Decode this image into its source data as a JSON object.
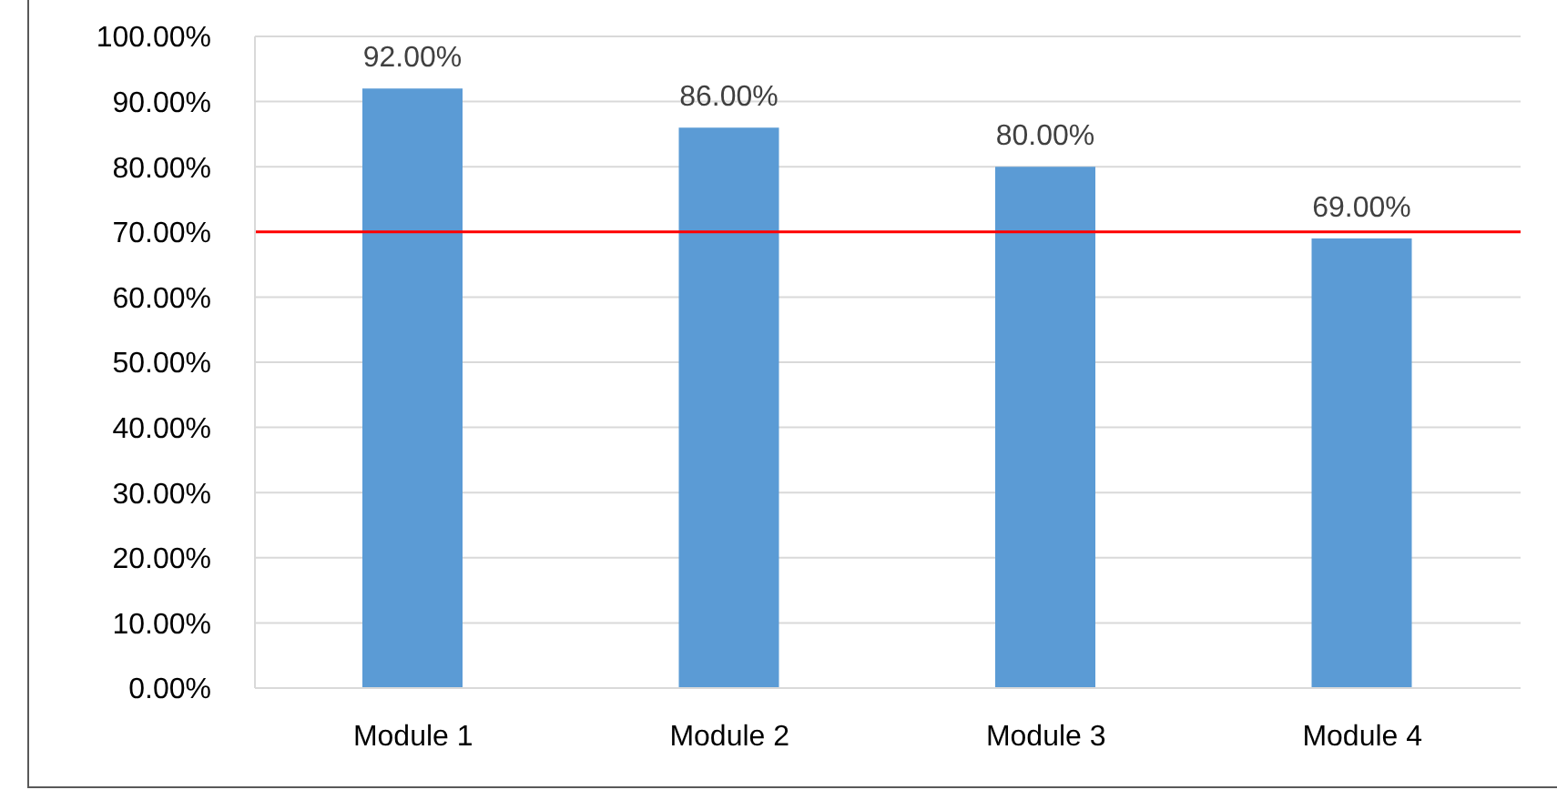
{
  "chart_data": {
    "type": "bar",
    "categories": [
      "Module 1",
      "Module 2",
      "Module 3",
      "Module 4"
    ],
    "values": [
      92,
      86,
      80,
      69
    ],
    "value_labels": [
      "92.00%",
      "86.00%",
      "80.00%",
      "69.00%"
    ],
    "color": "#5b9bd5",
    "ylim": [
      0,
      100
    ],
    "yticks": [
      {
        "value": 0,
        "label": "0.00%"
      },
      {
        "value": 10,
        "label": "10.00%"
      },
      {
        "value": 20,
        "label": "20.00%"
      },
      {
        "value": 30,
        "label": "30.00%"
      },
      {
        "value": 40,
        "label": "40.00%"
      },
      {
        "value": 50,
        "label": "50.00%"
      },
      {
        "value": 60,
        "label": "60.00%"
      },
      {
        "value": 70,
        "label": "70.00%"
      },
      {
        "value": 80,
        "label": "80.00%"
      },
      {
        "value": 90,
        "label": "90.00%"
      },
      {
        "value": 100,
        "label": "100.00%"
      }
    ],
    "ref_lines": [
      {
        "axis": "y",
        "value": 70,
        "color": "#ff0000"
      }
    ],
    "grid": "y"
  }
}
